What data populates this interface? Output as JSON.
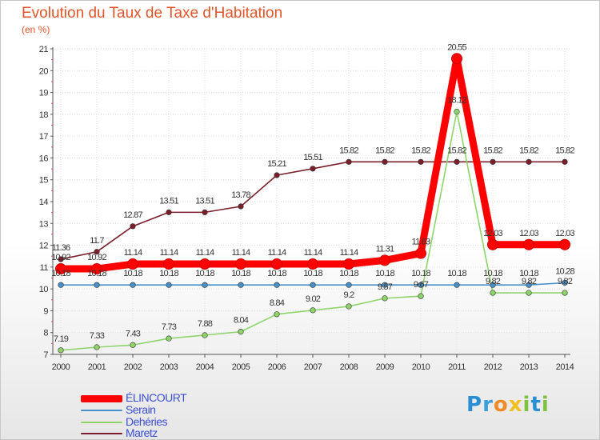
{
  "title": "Evolution du Taux de Taxe d'Habitation",
  "subtitle": "(en %)",
  "logo": {
    "text": "Proxiti",
    "letters": [
      "P",
      "r",
      "o",
      "x",
      "i",
      "t",
      "i"
    ],
    "colors": [
      "#2a8ed4",
      "#3aa0dc",
      "#f08a24",
      "#f0c020",
      "#7dc241",
      "#2a8ed4",
      "#7dc241"
    ]
  },
  "chart_data": {
    "type": "line",
    "x": [
      2000,
      2001,
      2002,
      2003,
      2004,
      2005,
      2006,
      2007,
      2008,
      2009,
      2010,
      2011,
      2012,
      2013,
      2014
    ],
    "ylim": [
      7,
      21
    ],
    "yticks": [
      7,
      8,
      9,
      10,
      11,
      12,
      13,
      14,
      15,
      16,
      17,
      18,
      19,
      20,
      21
    ],
    "grid": true,
    "legend_position": "bottom-left",
    "series": [
      {
        "name": "Maretz",
        "color": "#7a1f2a",
        "values": [
          11.36,
          11.7,
          12.87,
          13.51,
          13.51,
          13.78,
          15.21,
          15.51,
          15.82,
          15.82,
          15.82,
          15.82,
          15.82,
          15.82,
          15.82
        ],
        "labels": [
          "11.36",
          "11.7",
          "12.87",
          "13.51",
          "13.51",
          "13.78",
          "15.21",
          "15.51",
          "15.82",
          "15.82",
          "15.82",
          "15.82",
          "15.82",
          "15.82",
          "15.82"
        ]
      },
      {
        "name": "Dehéries",
        "color": "#8fd46b",
        "values": [
          7.19,
          7.33,
          7.43,
          7.73,
          7.88,
          8.04,
          8.84,
          9.02,
          9.2,
          9.57,
          9.67,
          18.12,
          9.82,
          9.82,
          9.82
        ],
        "labels": [
          "7.19",
          "7.33",
          "7.43",
          "7.73",
          "7.88",
          "8.04",
          "8.84",
          "9.02",
          "9.2",
          "9.57",
          "9.67",
          "18.12",
          "9.82",
          "9.82",
          "9.82"
        ]
      },
      {
        "name": "Serain",
        "color": "#4a90c8",
        "values": [
          10.18,
          10.18,
          10.18,
          10.18,
          10.18,
          10.18,
          10.18,
          10.18,
          10.18,
          10.18,
          10.18,
          10.18,
          10.18,
          10.18,
          10.28
        ],
        "labels": [
          "10.18",
          "10.18",
          "10.18",
          "10.18",
          "10.18",
          "10.18",
          "10.18",
          "10.18",
          "10.18",
          "10.18",
          "10.18",
          "10.18",
          "10.18",
          "10.18",
          "10.28"
        ]
      },
      {
        "name": "ÉLINCOURT",
        "color": "#ff0000",
        "values": [
          10.92,
          10.92,
          11.14,
          11.14,
          11.14,
          11.14,
          11.14,
          11.14,
          11.14,
          11.31,
          11.63,
          20.55,
          12.03,
          12.03,
          12.03
        ],
        "labels": [
          "10.92",
          "10.92",
          "11.14",
          "11.14",
          "11.14",
          "11.14",
          "11.14",
          "11.14",
          "11.14",
          "11.31",
          "11.63",
          "20.55",
          "12.03",
          "12.03",
          "12.03"
        ]
      }
    ],
    "legend": [
      "ÉLINCOURT",
      "Serain",
      "Dehéries",
      "Maretz"
    ]
  }
}
